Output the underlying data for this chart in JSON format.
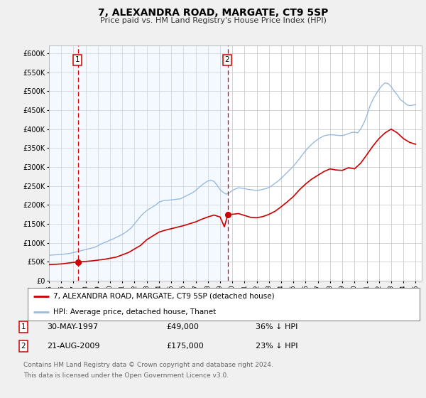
{
  "title": "7, ALEXANDRA ROAD, MARGATE, CT9 5SP",
  "subtitle": "Price paid vs. HM Land Registry's House Price Index (HPI)",
  "xlim": [
    1995.0,
    2025.5
  ],
  "ylim": [
    0,
    620000
  ],
  "yticks": [
    0,
    50000,
    100000,
    150000,
    200000,
    250000,
    300000,
    350000,
    400000,
    450000,
    500000,
    550000,
    600000
  ],
  "ytick_labels": [
    "£0",
    "£50K",
    "£100K",
    "£150K",
    "£200K",
    "£250K",
    "£300K",
    "£350K",
    "£400K",
    "£450K",
    "£500K",
    "£550K",
    "£600K"
  ],
  "xticks": [
    1995,
    1996,
    1997,
    1998,
    1999,
    2000,
    2001,
    2002,
    2003,
    2004,
    2005,
    2006,
    2007,
    2008,
    2009,
    2010,
    2011,
    2012,
    2013,
    2014,
    2015,
    2016,
    2017,
    2018,
    2019,
    2020,
    2021,
    2022,
    2023,
    2024,
    2025
  ],
  "bg_color": "#f0f0f0",
  "plot_bg_color": "#ffffff",
  "grid_color": "#cccccc",
  "vline1_x": 1997.39,
  "vline2_x": 2009.64,
  "marker1_x": 1997.39,
  "marker1_y": 49000,
  "marker2_x": 2009.64,
  "marker2_y": 175000,
  "sale_color": "#cc0000",
  "hpi_color": "#99bbdd",
  "legend_label1": "7, ALEXANDRA ROAD, MARGATE, CT9 5SP (detached house)",
  "legend_label2": "HPI: Average price, detached house, Thanet",
  "note1_num": "1",
  "note1_date": "30-MAY-1997",
  "note1_price": "£49,000",
  "note1_hpi": "36% ↓ HPI",
  "note2_num": "2",
  "note2_date": "21-AUG-2009",
  "note2_price": "£175,000",
  "note2_hpi": "23% ↓ HPI",
  "footnote1": "Contains HM Land Registry data © Crown copyright and database right 2024.",
  "footnote2": "This data is licensed under the Open Government Licence v3.0.",
  "hpi_data_x": [
    1995.0,
    1995.25,
    1995.5,
    1995.75,
    1996.0,
    1996.25,
    1996.5,
    1996.75,
    1997.0,
    1997.25,
    1997.5,
    1997.75,
    1998.0,
    1998.25,
    1998.5,
    1998.75,
    1999.0,
    1999.25,
    1999.5,
    1999.75,
    2000.0,
    2000.25,
    2000.5,
    2000.75,
    2001.0,
    2001.25,
    2001.5,
    2001.75,
    2002.0,
    2002.25,
    2002.5,
    2002.75,
    2003.0,
    2003.25,
    2003.5,
    2003.75,
    2004.0,
    2004.25,
    2004.5,
    2004.75,
    2005.0,
    2005.25,
    2005.5,
    2005.75,
    2006.0,
    2006.25,
    2006.5,
    2006.75,
    2007.0,
    2007.25,
    2007.5,
    2007.75,
    2008.0,
    2008.25,
    2008.5,
    2008.75,
    2009.0,
    2009.25,
    2009.5,
    2009.75,
    2010.0,
    2010.25,
    2010.5,
    2010.75,
    2011.0,
    2011.25,
    2011.5,
    2011.75,
    2012.0,
    2012.25,
    2012.5,
    2012.75,
    2013.0,
    2013.25,
    2013.5,
    2013.75,
    2014.0,
    2014.25,
    2014.5,
    2014.75,
    2015.0,
    2015.25,
    2015.5,
    2015.75,
    2016.0,
    2016.25,
    2016.5,
    2016.75,
    2017.0,
    2017.25,
    2017.5,
    2017.75,
    2018.0,
    2018.25,
    2018.5,
    2018.75,
    2019.0,
    2019.25,
    2019.5,
    2019.75,
    2020.0,
    2020.25,
    2020.5,
    2020.75,
    2021.0,
    2021.25,
    2021.5,
    2021.75,
    2022.0,
    2022.25,
    2022.5,
    2022.75,
    2023.0,
    2023.25,
    2023.5,
    2023.75,
    2024.0,
    2024.25,
    2024.5,
    2024.75,
    2025.0
  ],
  "hpi_data_y": [
    67000,
    67500,
    68000,
    68500,
    69000,
    70000,
    71000,
    72000,
    74000,
    76000,
    78000,
    80000,
    82000,
    84000,
    86000,
    88000,
    92000,
    96000,
    100000,
    103000,
    107000,
    110000,
    114000,
    118000,
    122000,
    127000,
    133000,
    140000,
    150000,
    160000,
    170000,
    178000,
    185000,
    190000,
    195000,
    200000,
    207000,
    210000,
    212000,
    212000,
    213000,
    214000,
    215000,
    216000,
    220000,
    224000,
    228000,
    232000,
    238000,
    245000,
    252000,
    258000,
    263000,
    265000,
    262000,
    252000,
    240000,
    233000,
    228000,
    232000,
    238000,
    242000,
    245000,
    244000,
    243000,
    241000,
    240000,
    239000,
    238000,
    239000,
    241000,
    243000,
    246000,
    251000,
    257000,
    263000,
    270000,
    278000,
    286000,
    294000,
    302000,
    312000,
    322000,
    333000,
    343000,
    352000,
    360000,
    367000,
    373000,
    378000,
    382000,
    384000,
    385000,
    385000,
    384000,
    383000,
    383000,
    385000,
    388000,
    391000,
    392000,
    390000,
    400000,
    415000,
    435000,
    460000,
    478000,
    492000,
    505000,
    515000,
    522000,
    520000,
    512000,
    500000,
    490000,
    478000,
    472000,
    465000,
    462000,
    463000,
    465000
  ],
  "sale_data_x": [
    1995.0,
    1995.5,
    1996.0,
    1996.5,
    1997.0,
    1997.39,
    1997.75,
    1998.5,
    1999.5,
    2000.5,
    2001.5,
    2002.5,
    2003.0,
    2003.5,
    2004.0,
    2004.5,
    2005.0,
    2005.5,
    2006.0,
    2006.5,
    2007.0,
    2007.5,
    2008.0,
    2008.5,
    2009.0,
    2009.35,
    2009.64,
    2010.0,
    2010.5,
    2011.0,
    2011.5,
    2012.0,
    2012.5,
    2013.0,
    2013.5,
    2014.0,
    2014.5,
    2015.0,
    2015.5,
    2016.0,
    2016.5,
    2017.0,
    2017.5,
    2018.0,
    2018.5,
    2019.0,
    2019.5,
    2020.0,
    2020.5,
    2021.0,
    2021.5,
    2022.0,
    2022.5,
    2023.0,
    2023.5,
    2024.0,
    2024.5,
    2025.0
  ],
  "sale_data_y": [
    42000,
    43000,
    44000,
    46000,
    48000,
    49000,
    50000,
    52000,
    56000,
    62000,
    74000,
    93000,
    108000,
    118000,
    128000,
    133000,
    137000,
    141000,
    145000,
    150000,
    155000,
    162000,
    168000,
    173000,
    168000,
    142000,
    175000,
    175000,
    177000,
    172000,
    167000,
    166000,
    169000,
    175000,
    183000,
    195000,
    208000,
    222000,
    240000,
    255000,
    268000,
    278000,
    288000,
    295000,
    292000,
    291000,
    298000,
    295000,
    310000,
    332000,
    355000,
    375000,
    390000,
    400000,
    390000,
    375000,
    365000,
    360000
  ]
}
